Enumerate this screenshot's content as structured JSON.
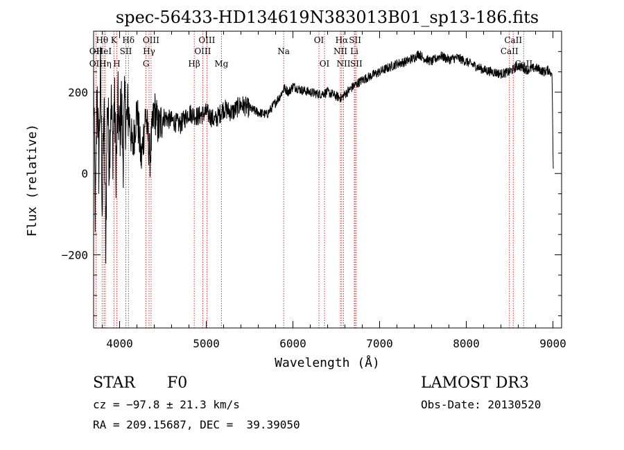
{
  "chart_data": {
    "type": "line",
    "title": "spec-56433-HD134619N383013B01_sp13-186.fits",
    "xlabel": "Wavelength (Å)",
    "ylabel": "Flux (relative)",
    "xlim": [
      3700,
      9100
    ],
    "ylim": [
      -380,
      350
    ],
    "x_ticks": [
      4000,
      5000,
      6000,
      7000,
      8000,
      9000
    ],
    "x_tick_labels": [
      "4000",
      "5000",
      "6000",
      "7000",
      "8000",
      "9000"
    ],
    "y_ticks": [
      -200,
      0,
      200
    ],
    "y_tick_labels": [
      "−200",
      "0",
      "200"
    ],
    "grid": false,
    "series": [
      {
        "name": "spectrum",
        "x": [
          3700,
          3720,
          3740,
          3760,
          3780,
          3800,
          3820,
          3840,
          3860,
          3880,
          3900,
          3920,
          3940,
          3960,
          3980,
          4000,
          4020,
          4040,
          4060,
          4080,
          4100,
          4150,
          4200,
          4250,
          4300,
          4350,
          4400,
          4450,
          4500,
          4600,
          4700,
          4800,
          4900,
          5000,
          5100,
          5200,
          5300,
          5400,
          5500,
          5600,
          5700,
          5800,
          5850,
          5900,
          5950,
          6000,
          6100,
          6200,
          6300,
          6400,
          6500,
          6560,
          6600,
          6700,
          6800,
          6900,
          7000,
          7100,
          7200,
          7300,
          7400,
          7450,
          7500,
          7600,
          7700,
          7800,
          7900,
          8000,
          8100,
          8200,
          8300,
          8400,
          8500,
          8600,
          8700,
          8800,
          8900,
          8950,
          8990,
          9000,
          9005
        ],
        "y": [
          230,
          -120,
          220,
          20,
          260,
          -90,
          170,
          -170,
          200,
          30,
          190,
          60,
          180,
          10,
          170,
          90,
          180,
          40,
          170,
          120,
          160,
          60,
          160,
          30,
          150,
          40,
          160,
          110,
          140,
          130,
          120,
          150,
          140,
          150,
          130,
          160,
          150,
          170,
          160,
          150,
          145,
          175,
          190,
          210,
          200,
          215,
          205,
          200,
          195,
          200,
          190,
          185,
          195,
          215,
          230,
          240,
          250,
          260,
          270,
          275,
          285,
          295,
          285,
          275,
          290,
          280,
          285,
          275,
          265,
          255,
          250,
          245,
          250,
          265,
          255,
          260,
          250,
          255,
          245,
          60,
          0
        ]
      }
    ],
    "line_annotations": [
      {
        "label": "OII",
        "wavelength": 3727,
        "row": 2
      },
      {
        "label": "OII",
        "wavelength": 3727,
        "row": 3
      },
      {
        "label": "Hθ",
        "wavelength": 3798,
        "row": 1
      },
      {
        "label": "HeI",
        "wavelength": 3820,
        "row": 2
      },
      {
        "label": "Hη",
        "wavelength": 3835,
        "row": 3
      },
      {
        "label": "K",
        "wavelength": 3934,
        "row": 1
      },
      {
        "label": "SII",
        "wavelength": 4072,
        "row": 2
      },
      {
        "label": "H",
        "wavelength": 3968,
        "row": 3
      },
      {
        "label": "Hδ",
        "wavelength": 4102,
        "row": 1
      },
      {
        "label": "OIII",
        "wavelength": 4363,
        "row": 1
      },
      {
        "label": "Hγ",
        "wavelength": 4340,
        "row": 2
      },
      {
        "label": "G",
        "wavelength": 4305,
        "row": 3
      },
      {
        "label": "Hβ",
        "wavelength": 4861,
        "row": 3
      },
      {
        "label": "OIII",
        "wavelength": 4959,
        "row": 2
      },
      {
        "label": "OIII",
        "wavelength": 5007,
        "row": 1
      },
      {
        "label": "Mg",
        "wavelength": 5175,
        "row": 3
      },
      {
        "label": "Na",
        "wavelength": 5893,
        "row": 2
      },
      {
        "label": "OI",
        "wavelength": 6300,
        "row": 1
      },
      {
        "label": "OI",
        "wavelength": 6364,
        "row": 3
      },
      {
        "label": "Hα",
        "wavelength": 6563,
        "row": 1
      },
      {
        "label": "NII",
        "wavelength": 6548,
        "row": 2
      },
      {
        "label": "NII",
        "wavelength": 6584,
        "row": 3
      },
      {
        "label": "SII",
        "wavelength": 6717,
        "row": 1
      },
      {
        "label": "Li",
        "wavelength": 6708,
        "row": 2
      },
      {
        "label": "SII",
        "wavelength": 6731,
        "row": 3
      },
      {
        "label": "CaII",
        "wavelength": 8542,
        "row": 1
      },
      {
        "label": "CaII",
        "wavelength": 8498,
        "row": 2
      },
      {
        "label": "CaII",
        "wavelength": 8662,
        "row": 3
      }
    ]
  },
  "info": {
    "object_class": "STAR",
    "subclass": "F0",
    "cz": "cz = −97.8 ± 21.3 km/s",
    "coords": "RA = 209.15687, DEC =  39.39050",
    "survey": "LAMOST DR3",
    "obs_date": "Obs-Date: 20130520"
  },
  "colors": {
    "spectrum": "#000000",
    "line_marker": "#cc0000",
    "axis": "#000000"
  }
}
